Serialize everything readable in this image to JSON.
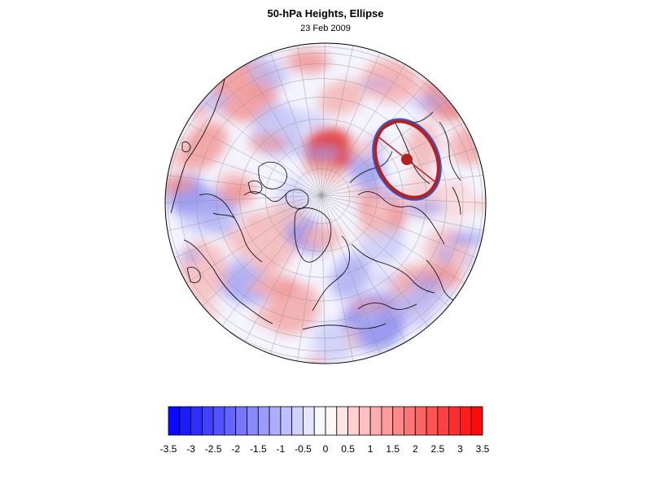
{
  "title": "50-hPa Heights, Ellipse",
  "subtitle": "23 Feb 2009",
  "colors": {
    "positive": "#ff0000",
    "negative": "#0000ff",
    "ellipse_outer": "#b22222",
    "ellipse_inner": "#1f3fbf",
    "coastline": "#000000",
    "grid": "#808080"
  },
  "colorbar": {
    "levels": [
      -3.5,
      -3.25,
      -3,
      -2.75,
      -2.5,
      -2.25,
      -2,
      -1.75,
      -1.5,
      -1.25,
      -1,
      -0.75,
      -0.5,
      -0.25,
      0,
      0.25,
      0.5,
      0.75,
      1,
      1.25,
      1.5,
      1.75,
      2,
      2.25,
      2.5,
      2.75,
      3,
      3.25,
      3.5
    ],
    "tick_labels": [
      "-3.5",
      "-3",
      "-2.5",
      "-2",
      "-1.5",
      "-1",
      "-0.5",
      "0",
      "0.5",
      "1",
      "1.5",
      "2",
      "2.5",
      "3",
      "3.5"
    ]
  },
  "map": {
    "projection": "north-polar orthographic",
    "grid": true
  }
}
